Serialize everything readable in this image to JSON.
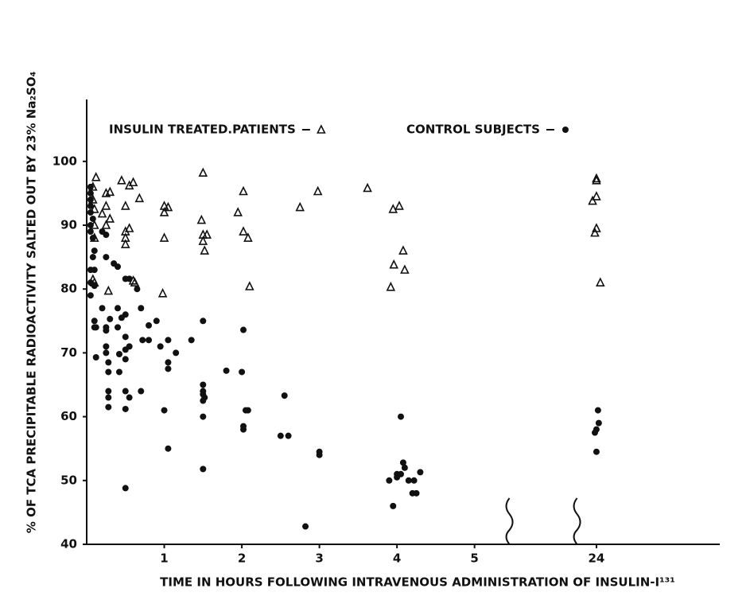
{
  "chart_data": {
    "type": "scatter",
    "ylabel": "% OF TCA PRECIPITABLE RADIOACTIVITY SALTED OUT BY 23% Na₂SO₄",
    "xlabel": "TIME IN HOURS FOLLOWING INTRAVENOUS ADMINISTRATION OF INSULIN-I¹³¹",
    "xlim": [
      0,
      25.59
    ],
    "xbreak": [
      5.45,
      23.75
    ],
    "xticks": [
      1,
      2,
      3,
      4,
      5,
      24
    ],
    "ylim": [
      40,
      109.7
    ],
    "yticks": [
      40,
      50,
      60,
      70,
      80,
      90,
      100
    ],
    "grid": false,
    "legend": "top",
    "series": [
      {
        "name": "INSULIN TREATED.PATIENTS",
        "marker": "triangle",
        "color": "#111",
        "x": [
          0.08,
          0.08,
          0.1,
          0.1,
          0.1,
          0.08,
          0.1,
          0.12,
          0.25,
          0.3,
          0.25,
          0.3,
          0.25,
          0.28,
          0.2,
          0.45,
          0.55,
          0.6,
          0.5,
          0.68,
          0.5,
          0.55,
          0.5,
          0.5,
          0.6,
          0.62,
          1.0,
          1.05,
          1.0,
          1.0,
          0.98,
          1.5,
          1.48,
          1.5,
          1.55,
          1.5,
          1.52,
          1.95,
          2.02,
          2.02,
          2.08,
          2.1,
          2.75,
          2.98,
          3.62,
          3.92,
          3.96,
          3.95,
          4.03,
          4.08,
          4.1,
          24,
          24,
          24,
          23.95,
          24,
          23.98,
          24.05
        ],
        "values": [
          96,
          94,
          92.5,
          90,
          88,
          81.5,
          81,
          97.5,
          95,
          95.2,
          93,
          91,
          90,
          79.7,
          91.8,
          97,
          96.2,
          96.7,
          93,
          94.2,
          89,
          89.5,
          88,
          87,
          81.3,
          81,
          93,
          92.8,
          92,
          88,
          79.3,
          98.2,
          90.8,
          88.5,
          88.5,
          87.5,
          86,
          92,
          95.3,
          89,
          88,
          80.4,
          92.8,
          95.3,
          95.8,
          80.3,
          83.8,
          92.5,
          93,
          86,
          83,
          97.3,
          97,
          94.5,
          93.8,
          89.5,
          88.8,
          81
        ]
      },
      {
        "name": "CONTROL SUBJECTS",
        "marker": "circle",
        "color": "#111",
        "x": [
          0.05,
          0.05,
          0.05,
          0.05,
          0.05,
          0.08,
          0.05,
          0.05,
          0.08,
          0.1,
          0.08,
          0.05,
          0.1,
          0.05,
          0.1,
          0.05,
          0.1,
          0.1,
          0.12,
          0.12,
          0.2,
          0.25,
          0.25,
          0.35,
          0.4,
          0.5,
          0.55,
          0.65,
          0.2,
          0.3,
          0.25,
          0.25,
          0.4,
          0.45,
          0.5,
          0.4,
          0.5,
          0.5,
          0.55,
          0.25,
          0.25,
          0.28,
          0.28,
          0.42,
          0.42,
          0.5,
          0.28,
          0.28,
          0.28,
          0.5,
          0.55,
          0.5,
          0.5,
          0.7,
          0.7,
          0.72,
          0.8,
          0.8,
          0.9,
          0.95,
          1.05,
          1.05,
          1.05,
          1.15,
          1.35,
          1.0,
          1.05,
          1.5,
          1.5,
          1.5,
          1.5,
          1.52,
          1.5,
          1.5,
          1.5,
          1.8,
          2.02,
          2.0,
          2.05,
          2.08,
          2.02,
          2.02,
          2.55,
          2.5,
          2.6,
          3.0,
          3.0,
          2.82,
          4.05,
          4.08,
          4.05,
          4.1,
          4.15,
          3.9,
          4.0,
          4.0,
          4.2,
          4.25,
          4.22,
          3.95,
          4.3,
          24.02,
          24.03,
          24,
          23.98,
          24
        ],
        "values": [
          96,
          95,
          94,
          93,
          92,
          91,
          90,
          89,
          88,
          86,
          85,
          83,
          83,
          81,
          80.5,
          79,
          75,
          74,
          74,
          69.3,
          89,
          85,
          88.5,
          84,
          83.5,
          81.6,
          81.6,
          80,
          77,
          75.3,
          74,
          73.5,
          77,
          75.5,
          76,
          74,
          72.5,
          70.5,
          71,
          71,
          70,
          68.5,
          67,
          69.8,
          67,
          69,
          64,
          63,
          61.5,
          64,
          63,
          61.2,
          48.8,
          64,
          77,
          72,
          74.3,
          72,
          75,
          71,
          72,
          68.5,
          67.5,
          70,
          72,
          61,
          55,
          75,
          65,
          64,
          63.5,
          63,
          62.5,
          60,
          51.8,
          67.2,
          73.6,
          67,
          61,
          61,
          58.5,
          58,
          63.3,
          57,
          57,
          54.5,
          54,
          42.8,
          60,
          52.8,
          51,
          52,
          50,
          50,
          51,
          50.5,
          48,
          48,
          50,
          46,
          51.3,
          61,
          59,
          58,
          57.5,
          54.5
        ]
      }
    ]
  }
}
